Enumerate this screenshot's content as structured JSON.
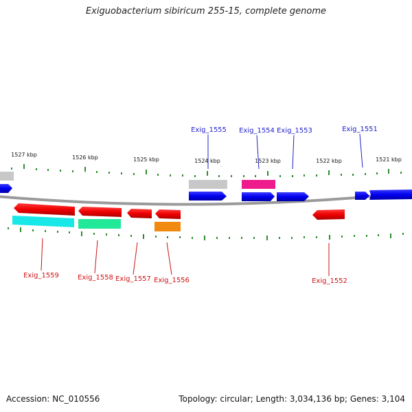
{
  "title": "Exiguobacterium sibiricum 255-15, complete genome",
  "footer": {
    "accession": "Accession: NC_010556",
    "summary": "Topology: circular; Length: 3,034,136 bp; Genes: 3,104"
  },
  "colors": {
    "forward_strand": "#0000ee",
    "reverse_strand": "#ee0000",
    "backbone": "#888888",
    "tick": "#2e8b2e",
    "label_forward": "#2020cc",
    "label_reverse": "#cc1111"
  },
  "ruler_labels": [
    "1527 kbp",
    "1526 kbp",
    "1525 kbp",
    "1524 kbp",
    "1523 kbp",
    "1522 kbp",
    "1521 kbp"
  ],
  "gene_labels_forward": [
    "Exig_1555",
    "Exig_1554",
    "Exig_1553",
    "Exig_1551"
  ],
  "gene_labels_reverse": [
    "Exig_1559",
    "Exig_1558",
    "Exig_1557",
    "Exig_1556",
    "Exig_1552"
  ],
  "feature_colors": {
    "Exig_1555_rna": "#c8c8c8",
    "Exig_1554_rna": "#ee1b8c",
    "Exig_1559_rna": "#18e8e8",
    "Exig_1558_rna": "#22e89a",
    "Exig_1556_rna": "#f08a10",
    "left_rna": "#c8c8c8"
  }
}
